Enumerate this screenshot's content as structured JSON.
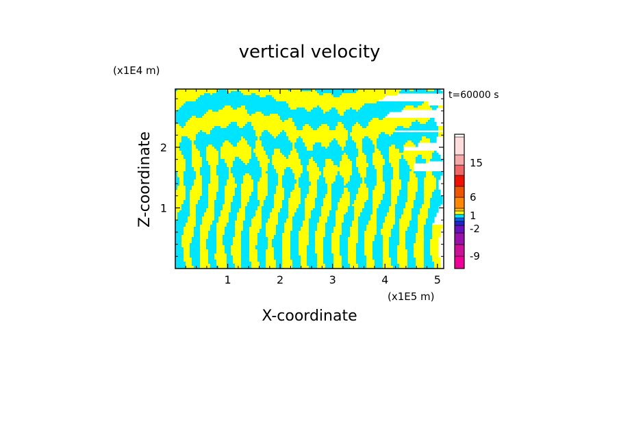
{
  "chart_data": {
    "type": "heatmap",
    "title": "vertical velocity",
    "xlabel": "X-coordinate",
    "ylabel": "Z-coordinate",
    "x_scale_label": "(x1E5 m)",
    "y_scale_label": "(x1E4 m)",
    "time_label": "t=60000 s",
    "x_ticks": [
      "1",
      "2",
      "3",
      "4",
      "5"
    ],
    "x_tick_values": [
      1,
      2,
      3,
      4,
      5
    ],
    "y_ticks": [
      "1",
      "2"
    ],
    "y_tick_values": [
      1,
      2
    ],
    "xlim": [
      0,
      5.12
    ],
    "ylim": [
      0,
      2.96
    ],
    "colorbar": {
      "tick_labels": [
        "15",
        "6",
        "1",
        "-2",
        "-9"
      ],
      "levels": [
        {
          "color": "#ee0099"
        },
        {
          "color": "#cc1199"
        },
        {
          "color": "#9911aa"
        },
        {
          "color": "#6611bb"
        },
        {
          "color": "#2222cc"
        },
        {
          "color": "#0066ee"
        },
        {
          "color": "#00e5ff"
        },
        {
          "color": "#ffff00"
        },
        {
          "color": "#ffbb00"
        },
        {
          "color": "#ff8800"
        },
        {
          "color": "#ee5500"
        },
        {
          "color": "#ee1100"
        },
        {
          "color": "#ee6666"
        },
        {
          "color": "#f5aaaa"
        },
        {
          "color": "#ffdddd"
        }
      ]
    },
    "field_colors": {
      "negative": "#00e5ff",
      "positive": "#ffff00"
    }
  }
}
